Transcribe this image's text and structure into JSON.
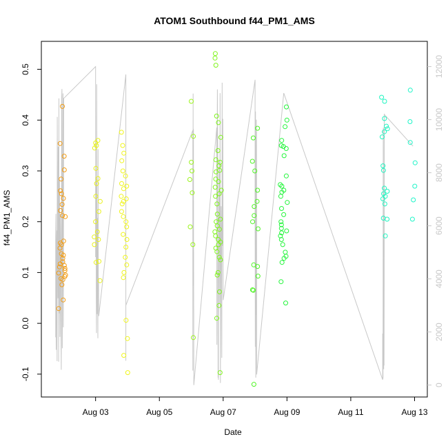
{
  "chart_data": {
    "type": "scatter",
    "title": "ATOM1 Southbound f44_PM1_AMS",
    "xlabel": "Date",
    "ylabel": "f44_PM1_AMS",
    "x_ticks": [
      "Aug 03",
      "Aug 05",
      "Aug 07",
      "Aug 09",
      "Aug 11",
      "Aug 13"
    ],
    "x_tick_days": [
      3,
      5,
      7,
      9,
      11,
      13
    ],
    "xlim_days": [
      1.3,
      13.4
    ],
    "y_ticks": [
      "-0.1",
      "0.0",
      "0.1",
      "0.2",
      "0.3",
      "0.4",
      "0.5"
    ],
    "y_tick_values": [
      -0.1,
      0.0,
      0.1,
      0.2,
      0.3,
      0.4,
      0.5
    ],
    "ylim": [
      -0.145,
      0.555
    ],
    "y2_ticks": [
      "0",
      "2000",
      "4000",
      "6000",
      "8000",
      "10000",
      "12000"
    ],
    "y2_tick_values": [
      0,
      2000,
      4000,
      6000,
      8000,
      10000,
      12000
    ],
    "y2lim": [
      -450,
      12950
    ],
    "colors": {
      "points_gradient": [
        "#f39c12",
        "#f1f31a",
        "#7ff51a",
        "#1ef532",
        "#1ef5c0"
      ],
      "secondary_line": "#c8c8c8"
    },
    "clusters": [
      {
        "day": 1.95,
        "color": "#f39c12",
        "values": [
          0.427,
          0.354,
          0.329,
          0.302,
          0.284,
          0.261,
          0.255,
          0.246,
          0.234,
          0.222,
          0.212,
          0.21,
          0.162,
          0.158,
          0.155,
          0.148,
          0.137,
          0.134,
          0.128,
          0.121,
          0.117,
          0.114,
          0.111,
          0.108,
          0.104,
          0.099,
          0.095,
          0.092,
          0.088,
          0.086,
          0.076,
          0.046,
          0.029
        ]
      },
      {
        "day": 3.05,
        "color": "#e9f21a",
        "values": [
          0.36,
          0.355,
          0.35,
          0.345,
          0.305,
          0.285,
          0.275,
          0.25,
          0.24,
          0.22,
          0.2,
          0.18,
          0.17,
          0.165,
          0.155,
          0.122,
          0.12,
          0.084
        ]
      },
      {
        "day": 3.9,
        "color": "#f0f51a",
        "values": [
          0.376,
          0.35,
          0.335,
          0.32,
          0.3,
          0.29,
          0.275,
          0.27,
          0.265,
          0.25,
          0.245,
          0.24,
          0.235,
          0.22,
          0.21,
          0.2,
          0.19,
          0.175,
          0.165,
          0.15,
          0.13,
          0.115,
          0.1,
          0.09,
          0.006,
          -0.03,
          -0.063,
          -0.097
        ]
      },
      {
        "day": 6.05,
        "color": "#9af51a",
        "values": [
          0.437,
          0.368,
          0.317,
          0.3,
          0.283,
          0.257,
          0.19,
          0.155,
          -0.028
        ]
      },
      {
        "day": 6.85,
        "color": "#7ff51a",
        "values": [
          0.531,
          0.522,
          0.508,
          0.408,
          0.395,
          0.366,
          0.34,
          0.322,
          0.317,
          0.31,
          0.301,
          0.298,
          0.284,
          0.279,
          0.268,
          0.262,
          0.255,
          0.25,
          0.235,
          0.215,
          0.205,
          0.2,
          0.192,
          0.185,
          0.18,
          0.172,
          0.165,
          0.16,
          0.155,
          0.148,
          0.141,
          0.13,
          0.125,
          0.1,
          0.095,
          0.062,
          0.035,
          0.01,
          -0.097
        ]
      },
      {
        "day": 8.0,
        "color": "#4ef524",
        "values": [
          0.384,
          0.365,
          0.319,
          0.3,
          0.262,
          0.24,
          0.23,
          0.212,
          0.2,
          0.186,
          0.115,
          0.112,
          0.093,
          0.066,
          0.065,
          -0.12
        ]
      },
      {
        "day": 8.9,
        "color": "#22f53a",
        "values": [
          0.426,
          0.4,
          0.387,
          0.36,
          0.35,
          0.348,
          0.344,
          0.33,
          0.29,
          0.273,
          0.27,
          0.262,
          0.258,
          0.25,
          0.238,
          0.226,
          0.214,
          0.2,
          0.194,
          0.187,
          0.182,
          0.178,
          0.172,
          0.165,
          0.155,
          0.14,
          0.132,
          0.128,
          0.12,
          0.082,
          0.04
        ]
      },
      {
        "day": 12.05,
        "color": "#1ef5c0",
        "values": [
          0.445,
          0.437,
          0.403,
          0.388,
          0.383,
          0.377,
          0.367,
          0.31,
          0.301,
          0.266,
          0.26,
          0.255,
          0.25,
          0.245,
          0.235,
          0.207,
          0.205,
          0.172
        ]
      },
      {
        "day": 12.95,
        "color": "#1ef5c8",
        "values": [
          0.459,
          0.397,
          0.356,
          0.316,
          0.27,
          0.243,
          0.205
        ]
      }
    ],
    "secondary_series": {
      "name": "",
      "shape": "jagged-line",
      "key_points": [
        {
          "x": 1.75,
          "y": 1800
        },
        {
          "x": 1.85,
          "y": 10800
        },
        {
          "x": 2.0,
          "y": 10800
        },
        {
          "x": 3.0,
          "y": 12000
        },
        {
          "x": 3.1,
          "y": 2600
        },
        {
          "x": 3.95,
          "y": 11700
        },
        {
          "x": 3.95,
          "y": 3000
        },
        {
          "x": 6.05,
          "y": 9600
        },
        {
          "x": 6.08,
          "y": 0
        },
        {
          "x": 6.8,
          "y": 9700
        },
        {
          "x": 6.85,
          "y": 200
        },
        {
          "x": 7.0,
          "y": 3200
        },
        {
          "x": 8.0,
          "y": 11500
        },
        {
          "x": 8.05,
          "y": 400
        },
        {
          "x": 8.9,
          "y": 11000
        },
        {
          "x": 12.0,
          "y": 200
        },
        {
          "x": 12.05,
          "y": 10200
        },
        {
          "x": 12.95,
          "y": 9000
        }
      ]
    }
  }
}
